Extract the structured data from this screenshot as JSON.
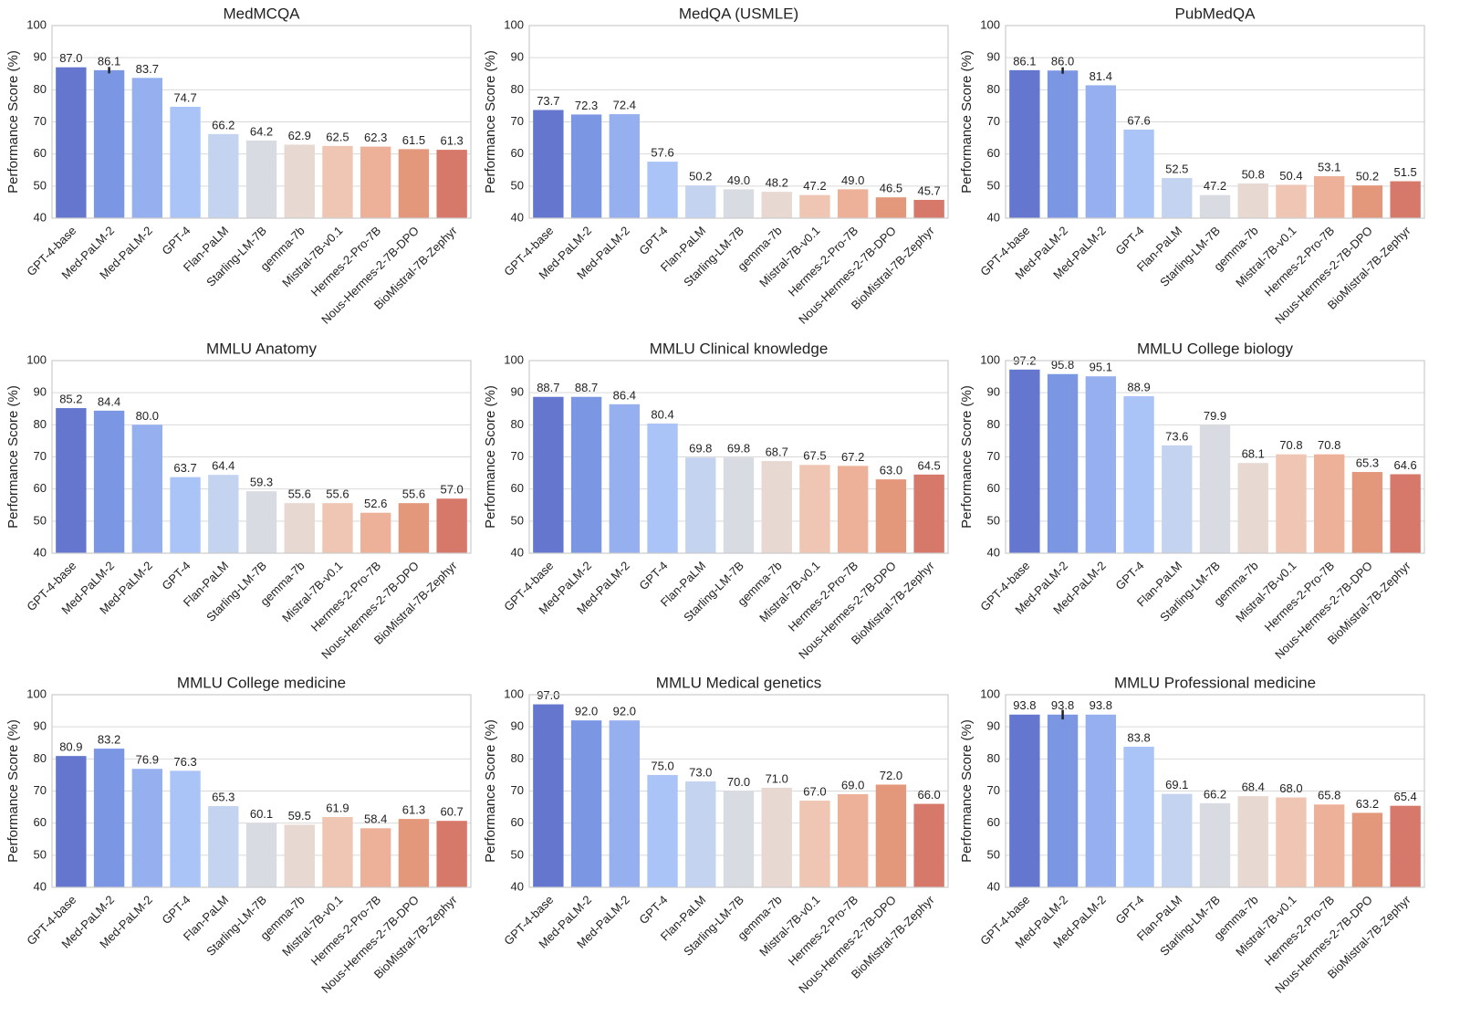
{
  "chart_data": [
    {
      "type": "bar",
      "title": "MedMCQA",
      "y_label": "Performance Score (%)",
      "categories": [
        "GPT-4-base",
        "Med-PaLM-2",
        "Med-PaLM-2",
        "GPT-4",
        "Flan-PaLM",
        "Starling-LM-7B",
        "gemma-7b",
        "Mistral-7B-v0.1",
        "Hermes-2-Pro-7B",
        "Nous-Hermes-2-7B-DPO",
        "BioMistral-7B-Zephyr"
      ],
      "values": [
        87.0,
        86.1,
        83.7,
        74.7,
        66.2,
        64.2,
        62.9,
        62.5,
        62.3,
        61.5,
        61.3
      ],
      "value_labels": [
        "87.0",
        "86.1",
        "83.7",
        "74.7",
        "66.2",
        "64.2",
        "62.9",
        "62.5",
        "62.3",
        "61.5",
        "61.3"
      ],
      "errors": [
        null,
        1.0,
        null,
        null,
        null,
        null,
        null,
        null,
        null,
        null,
        null
      ],
      "colors": [
        "#6576cf",
        "#7b97e4",
        "#96b0ef",
        "#abc4f7",
        "#c4d4f0",
        "#d8dbe2",
        "#e7d8d1",
        "#efc6b4",
        "#edb099",
        "#e3977b",
        "#d6786a"
      ],
      "ylim": [
        40,
        100
      ],
      "yticks": [
        40,
        50,
        60,
        70,
        80,
        90,
        100
      ],
      "grid": true
    },
    {
      "type": "bar",
      "title": "MedQA (USMLE)",
      "y_label": "Performance Score (%)",
      "categories": [
        "GPT-4-base",
        "Med-PaLM-2",
        "Med-PaLM-2",
        "GPT-4",
        "Flan-PaLM",
        "Starling-LM-7B",
        "gemma-7b",
        "Mistral-7B-v0.1",
        "Hermes-2-Pro-7B",
        "Nous-Hermes-2-7B-DPO",
        "BioMistral-7B-Zephyr"
      ],
      "values": [
        73.7,
        72.3,
        72.4,
        57.6,
        50.2,
        49.0,
        48.2,
        47.2,
        49.0,
        46.5,
        45.7
      ],
      "value_labels": [
        "73.7",
        "72.3",
        "72.4",
        "57.6",
        "50.2",
        "49.0",
        "48.2",
        "47.2",
        "49.0",
        "46.5",
        "45.7"
      ],
      "colors": [
        "#6576cf",
        "#7b97e4",
        "#96b0ef",
        "#abc4f7",
        "#c4d4f0",
        "#d8dbe2",
        "#e7d8d1",
        "#efc6b4",
        "#edb099",
        "#e3977b",
        "#d6786a"
      ],
      "ylim": [
        40,
        100
      ],
      "yticks": [
        40,
        50,
        60,
        70,
        80,
        90,
        100
      ],
      "grid": true
    },
    {
      "type": "bar",
      "title": "PubMedQA",
      "y_label": "Performance Score (%)",
      "categories": [
        "GPT-4-base",
        "Med-PaLM-2",
        "Med-PaLM-2",
        "GPT-4",
        "Flan-PaLM",
        "Starling-LM-7B",
        "gemma-7b",
        "Mistral-7B-v0.1",
        "Hermes-2-Pro-7B",
        "Nous-Hermes-2-7B-DPO",
        "BioMistral-7B-Zephyr"
      ],
      "values": [
        86.1,
        86.0,
        81.4,
        67.6,
        52.5,
        47.2,
        50.8,
        50.4,
        53.1,
        50.2,
        51.5
      ],
      "value_labels": [
        "86.1",
        "86.0",
        "81.4",
        "67.6",
        "52.5",
        "47.2",
        "50.8",
        "50.4",
        "53.1",
        "50.2",
        "51.5"
      ],
      "errors": [
        null,
        1.0,
        null,
        null,
        null,
        null,
        null,
        null,
        null,
        null,
        null
      ],
      "colors": [
        "#6576cf",
        "#7b97e4",
        "#96b0ef",
        "#abc4f7",
        "#c4d4f0",
        "#d8dbe2",
        "#e7d8d1",
        "#efc6b4",
        "#edb099",
        "#e3977b",
        "#d6786a"
      ],
      "ylim": [
        40,
        100
      ],
      "yticks": [
        40,
        50,
        60,
        70,
        80,
        90,
        100
      ],
      "grid": true
    },
    {
      "type": "bar",
      "title": "MMLU Anatomy",
      "y_label": "Performance Score (%)",
      "categories": [
        "GPT-4-base",
        "Med-PaLM-2",
        "Med-PaLM-2",
        "GPT-4",
        "Flan-PaLM",
        "Starling-LM-7B",
        "gemma-7b",
        "Mistral-7B-v0.1",
        "Hermes-2-Pro-7B",
        "Nous-Hermes-2-7B-DPO",
        "BioMistral-7B-Zephyr"
      ],
      "values": [
        85.2,
        84.4,
        80.0,
        63.7,
        64.4,
        59.3,
        55.6,
        55.6,
        52.6,
        55.6,
        57.0
      ],
      "value_labels": [
        "85.2",
        "84.4",
        "80.0",
        "63.7",
        "64.4",
        "59.3",
        "55.6",
        "55.6",
        "52.6",
        "55.6",
        "57.0"
      ],
      "colors": [
        "#6576cf",
        "#7b97e4",
        "#96b0ef",
        "#abc4f7",
        "#c4d4f0",
        "#d8dbe2",
        "#e7d8d1",
        "#efc6b4",
        "#edb099",
        "#e3977b",
        "#d6786a"
      ],
      "ylim": [
        40,
        100
      ],
      "yticks": [
        40,
        50,
        60,
        70,
        80,
        90,
        100
      ],
      "grid": true
    },
    {
      "type": "bar",
      "title": "MMLU Clinical knowledge",
      "y_label": "Performance Score (%)",
      "categories": [
        "GPT-4-base",
        "Med-PaLM-2",
        "Med-PaLM-2",
        "GPT-4",
        "Flan-PaLM",
        "Starling-LM-7B",
        "gemma-7b",
        "Mistral-7B-v0.1",
        "Hermes-2-Pro-7B",
        "Nous-Hermes-2-7B-DPO",
        "BioMistral-7B-Zephyr"
      ],
      "values": [
        88.7,
        88.7,
        86.4,
        80.4,
        69.8,
        69.8,
        68.7,
        67.5,
        67.2,
        63.0,
        64.5
      ],
      "value_labels": [
        "88.7",
        "88.7",
        "86.4",
        "80.4",
        "69.8",
        "69.8",
        "68.7",
        "67.5",
        "67.2",
        "63.0",
        "64.5"
      ],
      "colors": [
        "#6576cf",
        "#7b97e4",
        "#96b0ef",
        "#abc4f7",
        "#c4d4f0",
        "#d8dbe2",
        "#e7d8d1",
        "#efc6b4",
        "#edb099",
        "#e3977b",
        "#d6786a"
      ],
      "ylim": [
        40,
        100
      ],
      "yticks": [
        40,
        50,
        60,
        70,
        80,
        90,
        100
      ],
      "grid": true
    },
    {
      "type": "bar",
      "title": "MMLU College biology",
      "y_label": "Performance Score (%)",
      "categories": [
        "GPT-4-base",
        "Med-PaLM-2",
        "Med-PaLM-2",
        "GPT-4",
        "Flan-PaLM",
        "Starling-LM-7B",
        "gemma-7b",
        "Mistral-7B-v0.1",
        "Hermes-2-Pro-7B",
        "Nous-Hermes-2-7B-DPO",
        "BioMistral-7B-Zephyr"
      ],
      "values": [
        97.2,
        95.8,
        95.1,
        88.9,
        73.6,
        79.9,
        68.1,
        70.8,
        70.8,
        65.3,
        64.6
      ],
      "value_labels": [
        "97.2",
        "95.8",
        "95.1",
        "88.9",
        "73.6",
        "79.9",
        "68.1",
        "70.8",
        "70.8",
        "65.3",
        "64.6"
      ],
      "colors": [
        "#6576cf",
        "#7b97e4",
        "#96b0ef",
        "#abc4f7",
        "#c4d4f0",
        "#d8dbe2",
        "#e7d8d1",
        "#efc6b4",
        "#edb099",
        "#e3977b",
        "#d6786a"
      ],
      "ylim": [
        40,
        100
      ],
      "yticks": [
        40,
        50,
        60,
        70,
        80,
        90,
        100
      ],
      "grid": true
    },
    {
      "type": "bar",
      "title": "MMLU College medicine",
      "y_label": "Performance Score (%)",
      "categories": [
        "GPT-4-base",
        "Med-PaLM-2",
        "Med-PaLM-2",
        "GPT-4",
        "Flan-PaLM",
        "Starling-LM-7B",
        "gemma-7b",
        "Mistral-7B-v0.1",
        "Hermes-2-Pro-7B",
        "Nous-Hermes-2-7B-DPO",
        "BioMistral-7B-Zephyr"
      ],
      "values": [
        80.9,
        83.2,
        76.9,
        76.3,
        65.3,
        60.1,
        59.5,
        61.9,
        58.4,
        61.3,
        60.7
      ],
      "value_labels": [
        "80.9",
        "83.2",
        "76.9",
        "76.3",
        "65.3",
        "60.1",
        "59.5",
        "61.9",
        "58.4",
        "61.3",
        "60.7"
      ],
      "colors": [
        "#6576cf",
        "#7b97e4",
        "#96b0ef",
        "#abc4f7",
        "#c4d4f0",
        "#d8dbe2",
        "#e7d8d1",
        "#efc6b4",
        "#edb099",
        "#e3977b",
        "#d6786a"
      ],
      "ylim": [
        40,
        100
      ],
      "yticks": [
        40,
        50,
        60,
        70,
        80,
        90,
        100
      ],
      "grid": true
    },
    {
      "type": "bar",
      "title": "MMLU Medical genetics",
      "y_label": "Performance Score (%)",
      "categories": [
        "GPT-4-base",
        "Med-PaLM-2",
        "Med-PaLM-2",
        "GPT-4",
        "Flan-PaLM",
        "Starling-LM-7B",
        "gemma-7b",
        "Mistral-7B-v0.1",
        "Hermes-2-Pro-7B",
        "Nous-Hermes-2-7B-DPO",
        "BioMistral-7B-Zephyr"
      ],
      "values": [
        97.0,
        92.0,
        92.0,
        75.0,
        73.0,
        70.0,
        71.0,
        67.0,
        69.0,
        72.0,
        66.0
      ],
      "value_labels": [
        "97.0",
        "92.0",
        "92.0",
        "75.0",
        "73.0",
        "70.0",
        "71.0",
        "67.0",
        "69.0",
        "72.0",
        "66.0"
      ],
      "colors": [
        "#6576cf",
        "#7b97e4",
        "#96b0ef",
        "#abc4f7",
        "#c4d4f0",
        "#d8dbe2",
        "#e7d8d1",
        "#efc6b4",
        "#edb099",
        "#e3977b",
        "#d6786a"
      ],
      "ylim": [
        40,
        100
      ],
      "yticks": [
        40,
        50,
        60,
        70,
        80,
        90,
        100
      ],
      "grid": true
    },
    {
      "type": "bar",
      "title": "MMLU Professional medicine",
      "y_label": "Performance Score (%)",
      "categories": [
        "GPT-4-base",
        "Med-PaLM-2",
        "Med-PaLM-2",
        "GPT-4",
        "Flan-PaLM",
        "Starling-LM-7B",
        "gemma-7b",
        "Mistral-7B-v0.1",
        "Hermes-2-Pro-7B",
        "Nous-Hermes-2-7B-DPO",
        "BioMistral-7B-Zephyr"
      ],
      "values": [
        93.8,
        93.8,
        93.8,
        83.8,
        69.1,
        66.2,
        68.4,
        68.0,
        65.8,
        63.2,
        65.4
      ],
      "value_labels": [
        "93.8",
        "93.8",
        "93.8",
        "83.8",
        "69.1",
        "66.2",
        "68.4",
        "68.0",
        "65.8",
        "63.2",
        "65.4"
      ],
      "errors": [
        null,
        1.5,
        null,
        null,
        null,
        null,
        null,
        null,
        null,
        null,
        null
      ],
      "colors": [
        "#6576cf",
        "#7b97e4",
        "#96b0ef",
        "#abc4f7",
        "#c4d4f0",
        "#d8dbe2",
        "#e7d8d1",
        "#efc6b4",
        "#edb099",
        "#e3977b",
        "#d6786a"
      ],
      "ylim": [
        40,
        100
      ],
      "yticks": [
        40,
        50,
        60,
        70,
        80,
        90,
        100
      ],
      "grid": true
    }
  ]
}
